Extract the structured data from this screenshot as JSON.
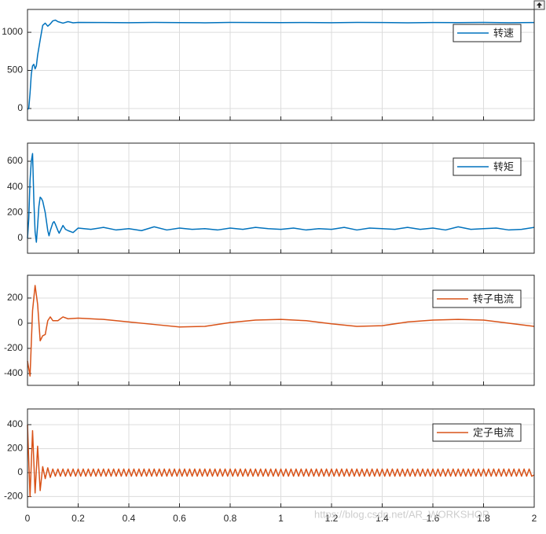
{
  "chart_data": [
    {
      "type": "line",
      "xlim": [
        0,
        2
      ],
      "ylim": [
        -155,
        1300
      ],
      "yticks": [
        0,
        500,
        1000
      ],
      "xticks": [
        0,
        0.2,
        0.4,
        0.6,
        0.8,
        1,
        1.2,
        1.4,
        1.6,
        1.8,
        2
      ],
      "xtick_labels": false,
      "grid": true,
      "legend": "upper right",
      "x": [
        0,
        0.005,
        0.01,
        0.015,
        0.02,
        0.025,
        0.03,
        0.035,
        0.04,
        0.05,
        0.06,
        0.07,
        0.08,
        0.09,
        0.1,
        0.11,
        0.12,
        0.14,
        0.16,
        0.18,
        0.2,
        0.3,
        0.4,
        0.5,
        0.6,
        0.7,
        0.8,
        0.9,
        1,
        1.1,
        1.2,
        1.3,
        1.4,
        1.5,
        1.6,
        1.7,
        1.8,
        1.9,
        2
      ],
      "series": [
        {
          "name": "转速",
          "color": "#0072bd",
          "values": [
            -10,
            0,
            200,
            450,
            560,
            580,
            520,
            560,
            700,
            900,
            1090,
            1120,
            1080,
            1110,
            1150,
            1160,
            1140,
            1120,
            1140,
            1125,
            1130,
            1128,
            1126,
            1130,
            1127,
            1125,
            1130,
            1128,
            1127,
            1129,
            1126,
            1130,
            1128,
            1125,
            1129,
            1127,
            1130,
            1126,
            1128
          ]
        }
      ]
    },
    {
      "type": "line",
      "xlim": [
        0,
        2
      ],
      "ylim": [
        -116,
        741
      ],
      "yticks": [
        0,
        200,
        400,
        600
      ],
      "xticks": [
        0,
        0.2,
        0.4,
        0.6,
        0.8,
        1,
        1.2,
        1.4,
        1.6,
        1.8,
        2
      ],
      "xtick_labels": false,
      "grid": true,
      "legend": "upper right",
      "x": [
        0,
        0.005,
        0.01,
        0.015,
        0.02,
        0.025,
        0.03,
        0.035,
        0.04,
        0.045,
        0.05,
        0.055,
        0.06,
        0.07,
        0.08,
        0.085,
        0.09,
        0.1,
        0.105,
        0.11,
        0.12,
        0.125,
        0.13,
        0.14,
        0.15,
        0.16,
        0.18,
        0.2,
        0.25,
        0.3,
        0.35,
        0.4,
        0.45,
        0.5,
        0.55,
        0.6,
        0.65,
        0.7,
        0.75,
        0.8,
        0.85,
        0.9,
        0.95,
        1,
        1.05,
        1.1,
        1.15,
        1.2,
        1.25,
        1.3,
        1.35,
        1.4,
        1.45,
        1.5,
        1.55,
        1.6,
        1.65,
        1.7,
        1.75,
        1.8,
        1.85,
        1.9,
        1.95,
        2
      ],
      "series": [
        {
          "name": "转矩",
          "color": "#0072bd",
          "values": [
            0,
            150,
            450,
            600,
            660,
            300,
            50,
            -30,
            100,
            250,
            320,
            310,
            290,
            200,
            60,
            20,
            60,
            120,
            130,
            110,
            60,
            40,
            60,
            100,
            70,
            60,
            45,
            80,
            70,
            85,
            65,
            75,
            60,
            90,
            65,
            80,
            70,
            75,
            65,
            80,
            70,
            85,
            75,
            70,
            80,
            65,
            75,
            70,
            85,
            65,
            80,
            75,
            70,
            85,
            70,
            80,
            65,
            90,
            70,
            75,
            80,
            65,
            70,
            85
          ]
        }
      ]
    },
    {
      "type": "line",
      "xlim": [
        0,
        2
      ],
      "ylim": [
        -494,
        381
      ],
      "yticks": [
        -400,
        -200,
        0,
        200
      ],
      "xticks": [
        0,
        0.2,
        0.4,
        0.6,
        0.8,
        1,
        1.2,
        1.4,
        1.6,
        1.8,
        2
      ],
      "xtick_labels": false,
      "grid": true,
      "legend": "upper right",
      "x": [
        0,
        0.01,
        0.02,
        0.03,
        0.04,
        0.05,
        0.06,
        0.07,
        0.08,
        0.09,
        0.1,
        0.12,
        0.14,
        0.16,
        0.2,
        0.3,
        0.4,
        0.5,
        0.6,
        0.7,
        0.8,
        0.9,
        1,
        1.1,
        1.2,
        1.3,
        1.4,
        1.5,
        1.6,
        1.7,
        1.8,
        1.9,
        2
      ],
      "series": [
        {
          "name": "转子电流",
          "color": "#d95319",
          "values": [
            -300,
            -420,
            100,
            300,
            150,
            -140,
            -100,
            -90,
            20,
            50,
            20,
            20,
            50,
            35,
            40,
            30,
            10,
            -10,
            -30,
            -25,
            5,
            25,
            30,
            20,
            -5,
            -25,
            -20,
            10,
            25,
            30,
            25,
            0,
            -25
          ]
        }
      ]
    },
    {
      "type": "line",
      "xlim": [
        0,
        2
      ],
      "ylim": [
        -289,
        531
      ],
      "yticks": [
        -200,
        0,
        200,
        400
      ],
      "xticks": [
        0,
        0.2,
        0.4,
        0.6,
        0.8,
        1,
        1.2,
        1.4,
        1.6,
        1.8,
        2
      ],
      "xtick_labels": true,
      "grid": true,
      "legend": "upper right",
      "x": [
        0,
        0.01,
        0.02,
        0.03,
        0.04,
        0.05,
        0.06,
        0.07,
        0.08,
        0.09,
        0.1,
        0.11,
        0.12,
        0.13,
        0.14,
        0.15,
        0.16,
        0.17,
        0.18,
        0.19,
        0.2,
        0.21,
        0.22,
        0.23,
        0.24,
        0.25,
        0.26,
        0.27,
        0.28,
        0.29,
        0.3,
        0.31,
        0.32,
        0.33,
        0.34,
        0.35,
        0.36,
        0.37,
        0.38,
        0.39,
        0.4,
        0.41,
        0.42,
        0.43,
        0.44,
        0.45,
        0.46,
        0.47,
        0.48,
        0.49,
        0.5,
        0.51,
        0.52,
        0.53,
        0.54,
        0.55,
        0.56,
        0.57,
        0.58,
        0.59,
        0.6,
        0.61,
        0.62,
        0.63,
        0.64,
        0.65,
        0.66,
        0.67,
        0.68,
        0.69,
        0.7,
        0.71,
        0.72,
        0.73,
        0.74,
        0.75,
        0.76,
        0.77,
        0.78,
        0.79,
        0.8,
        0.81,
        0.82,
        0.83,
        0.84,
        0.85,
        0.86,
        0.87,
        0.88,
        0.89,
        0.9,
        0.91,
        0.92,
        0.93,
        0.94,
        0.95,
        0.96,
        0.97,
        0.98,
        0.99,
        1,
        1.01,
        1.02,
        1.03,
        1.04,
        1.05,
        1.06,
        1.07,
        1.08,
        1.09,
        1.1,
        1.11,
        1.12,
        1.13,
        1.14,
        1.15,
        1.16,
        1.17,
        1.18,
        1.19,
        1.2,
        1.21,
        1.22,
        1.23,
        1.24,
        1.25,
        1.26,
        1.27,
        1.28,
        1.29,
        1.3,
        1.31,
        1.32,
        1.33,
        1.34,
        1.35,
        1.36,
        1.37,
        1.38,
        1.39,
        1.4,
        1.41,
        1.42,
        1.43,
        1.44,
        1.45,
        1.46,
        1.47,
        1.48,
        1.49,
        1.5,
        1.51,
        1.52,
        1.53,
        1.54,
        1.55,
        1.56,
        1.57,
        1.58,
        1.59,
        1.6,
        1.61,
        1.62,
        1.63,
        1.64,
        1.65,
        1.66,
        1.67,
        1.68,
        1.69,
        1.7,
        1.71,
        1.72,
        1.73,
        1.74,
        1.75,
        1.76,
        1.77,
        1.78,
        1.79,
        1.8,
        1.81,
        1.82,
        1.83,
        1.84,
        1.85,
        1.86,
        1.87,
        1.88,
        1.89,
        1.9,
        1.91,
        1.92,
        1.93,
        1.94,
        1.95,
        1.96,
        1.97,
        1.98,
        1.99,
        2
      ],
      "series": [
        {
          "name": "定子电流",
          "color": "#d95319",
          "values": [
            400,
            -200,
            350,
            -170,
            220,
            -150,
            50,
            -50,
            40,
            -40,
            30,
            -30,
            30,
            -30,
            30,
            -30,
            30,
            -30,
            30,
            -30,
            30,
            -30,
            30,
            -30,
            30,
            -30,
            30,
            -30,
            30,
            -30,
            30,
            -30,
            30,
            -30,
            30,
            -30,
            30,
            -30,
            30,
            -30,
            30,
            -30,
            30,
            -30,
            30,
            -30,
            30,
            -30,
            30,
            -30,
            30,
            -30,
            30,
            -30,
            30,
            -30,
            30,
            -30,
            30,
            -30,
            30,
            -30,
            30,
            -30,
            30,
            -30,
            30,
            -30,
            30,
            -30,
            30,
            -30,
            30,
            -30,
            30,
            -30,
            30,
            -30,
            30,
            -30,
            30,
            -30,
            30,
            -30,
            30,
            -30,
            30,
            -30,
            30,
            -30,
            30,
            -30,
            30,
            -30,
            30,
            -30,
            30,
            -30,
            30,
            -30,
            30,
            -30,
            30,
            -30,
            30,
            -30,
            30,
            -30,
            30,
            -30,
            30,
            -30,
            30,
            -30,
            30,
            -30,
            30,
            -30,
            30,
            -30,
            30,
            -30,
            30,
            -30,
            30,
            -30,
            30,
            -30,
            30,
            -30,
            30,
            -30,
            30,
            -30,
            30,
            -30,
            30,
            -30,
            30,
            -30,
            30,
            -30,
            30,
            -30,
            30,
            -30,
            30,
            -30,
            30,
            -30,
            30,
            -30,
            30,
            -30,
            30,
            -30,
            30,
            -30,
            30,
            -30,
            30,
            -30,
            30,
            -30,
            30,
            -30,
            30,
            -30,
            30,
            -30,
            30,
            -30,
            30,
            -30,
            30,
            -30,
            30,
            -30,
            30,
            -30,
            30,
            -30,
            30,
            -30,
            30,
            -30,
            30,
            -30,
            30,
            -30,
            30,
            -30,
            30,
            -30,
            30,
            -30,
            30,
            -30,
            30,
            -30,
            -20
          ]
        }
      ]
    }
  ],
  "watermark": "https://blog.csdn.net/AR_WORKSHOP"
}
